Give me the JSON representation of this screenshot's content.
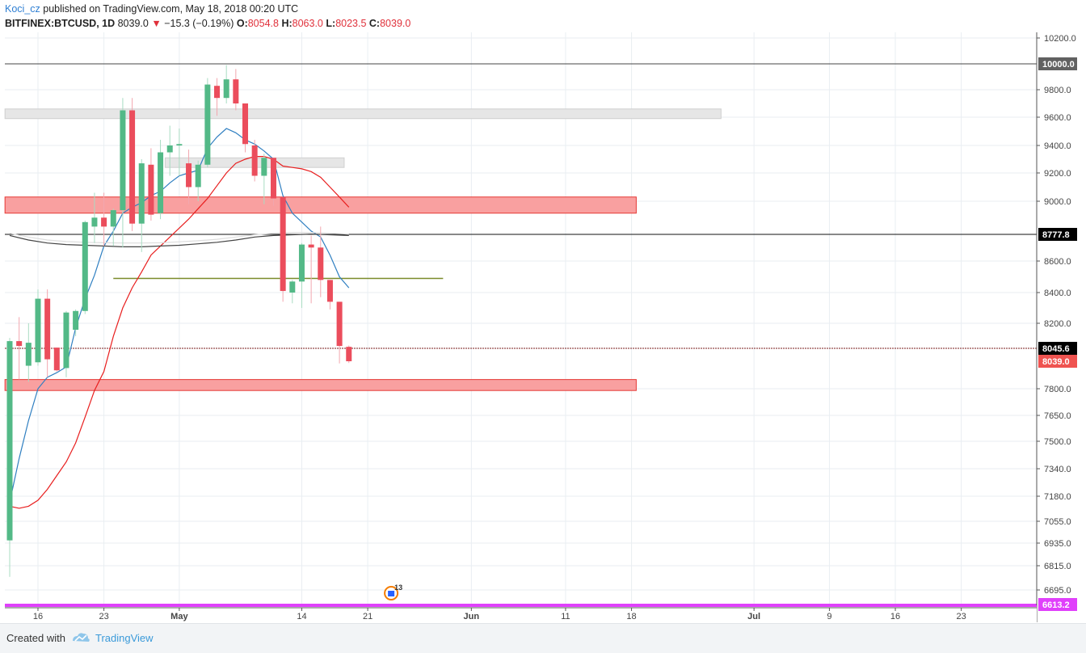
{
  "header": {
    "author": "Koci_cz",
    "published_text": " published on TradingView.com, May 18, 2018 00:20 UTC",
    "symbol": "BITFINEX:BTCUSD, 1D",
    "last": "8039.0",
    "change_arrow": "▼",
    "change": "−15.3 (−0.19%)",
    "o_label": "O:",
    "o_value": "8054.8",
    "h_label": "H:",
    "h_value": "8063.0",
    "l_label": "L:",
    "l_value": "8023.5",
    "c_label": "C:",
    "c_value": "8039.0"
  },
  "footer": {
    "created_with": "Created with",
    "brand": "TradingView"
  },
  "chart_data": {
    "type": "candlestick",
    "y_ticks": [
      {
        "label": "10200.0",
        "value": 10200
      },
      {
        "label": "9800.0",
        "value": 9800
      },
      {
        "label": "9600.0",
        "value": 9600
      },
      {
        "label": "9400.0",
        "value": 9400
      },
      {
        "label": "9200.0",
        "value": 9200
      },
      {
        "label": "9000.0",
        "value": 9000
      },
      {
        "label": "8600.0",
        "value": 8600
      },
      {
        "label": "8400.0",
        "value": 8400
      },
      {
        "label": "8200.0",
        "value": 8200
      },
      {
        "label": "7800.0",
        "value": 7800
      },
      {
        "label": "7650.0",
        "value": 7650
      },
      {
        "label": "7500.0",
        "value": 7500
      },
      {
        "label": "7340.0",
        "value": 7340
      },
      {
        "label": "7180.0",
        "value": 7180
      },
      {
        "label": "7055.0",
        "value": 7055
      },
      {
        "label": "6935.0",
        "value": 6935
      },
      {
        "label": "6815.0",
        "value": 6815
      },
      {
        "label": "6695.0",
        "value": 6695
      }
    ],
    "x_ticks": [
      {
        "label": "16",
        "day": 3
      },
      {
        "label": "23",
        "day": 10
      },
      {
        "label": "May",
        "day": 18
      },
      {
        "label": "14",
        "day": 31
      },
      {
        "label": "21",
        "day": 38
      },
      {
        "label": "Jun",
        "day": 49
      },
      {
        "label": "11",
        "day": 59
      },
      {
        "label": "18",
        "day": 66
      },
      {
        "label": "Jul",
        "day": 79
      },
      {
        "label": "9",
        "day": 87
      },
      {
        "label": "16",
        "day": 94
      },
      {
        "label": "23",
        "day": 101
      }
    ],
    "price_tags": [
      {
        "label": "10000.0",
        "value": 10000,
        "bg": "#616161",
        "fg": "#ffffff"
      },
      {
        "label": "8777.8",
        "value": 8777.8,
        "bg": "#000000",
        "fg": "#ffffff"
      },
      {
        "label": "8045.6",
        "value": 8045.6,
        "bg": "#000000",
        "fg": "#ffffff"
      },
      {
        "label": "8039.0",
        "value": 8039,
        "bg": "#ef5350",
        "fg": "#ffffff"
      },
      {
        "label": "6613.2",
        "value": 6613.2,
        "bg": "#e040fb",
        "fg": "#ffffff"
      }
    ],
    "horizontal_lines": [
      {
        "value": 10000,
        "color": "#444444"
      },
      {
        "value": 8777.8,
        "color": "#111111"
      },
      {
        "value": 8045.6,
        "color": "#7a1b1b",
        "dashed": true
      },
      {
        "value": 6613.2,
        "color": "#e040fb"
      }
    ],
    "zones": [
      {
        "day_from": -0.5,
        "day_to": 75.5,
        "top": 9660,
        "bottom": 9590,
        "fill": "#e6e6e6",
        "stroke": "#cfcfcf"
      },
      {
        "day_from": 16.5,
        "day_to": 35.5,
        "top": 9310,
        "bottom": 9240,
        "fill": "#e6e6e6",
        "stroke": "#cfcfcf"
      },
      {
        "day_from": -0.5,
        "day_to": 66.5,
        "top": 9030,
        "bottom": 8920,
        "fill": "#f9a0a0",
        "stroke": "#e53935"
      },
      {
        "day_from": -0.5,
        "day_to": 66.5,
        "top": 7880,
        "bottom": 7790,
        "fill": "#f9a0a0",
        "stroke": "#e53935"
      }
    ],
    "trend_line": {
      "day_from": 11,
      "day_to": 46,
      "value": 8490,
      "color": "#7a8b2a"
    },
    "candles": [
      {
        "day": 0,
        "o": 6950,
        "h": 8110,
        "l": 6760,
        "c": 8090
      },
      {
        "day": 1,
        "o": 8090,
        "h": 8240,
        "l": 7880,
        "c": 8060
      },
      {
        "day": 2,
        "o": 8000,
        "h": 8200,
        "l": 7860,
        "c": 8080
      },
      {
        "day": 3,
        "o": 8030,
        "h": 8420,
        "l": 8000,
        "c": 8360
      },
      {
        "day": 4,
        "o": 8360,
        "h": 8420,
        "l": 7900,
        "c": 8040
      },
      {
        "day": 5,
        "o": 8050,
        "h": 8050,
        "l": 7950,
        "c": 7960
      },
      {
        "day": 6,
        "o": 7980,
        "h": 8280,
        "l": 7900,
        "c": 8270
      },
      {
        "day": 7,
        "o": 8160,
        "h": 8290,
        "l": 8120,
        "c": 8280
      },
      {
        "day": 8,
        "o": 8280,
        "h": 8870,
        "l": 8260,
        "c": 8860
      },
      {
        "day": 9,
        "o": 8830,
        "h": 9060,
        "l": 8720,
        "c": 8890
      },
      {
        "day": 10,
        "o": 8890,
        "h": 9060,
        "l": 8700,
        "c": 8830
      },
      {
        "day": 11,
        "o": 8830,
        "h": 8950,
        "l": 8700,
        "c": 8940
      },
      {
        "day": 12,
        "o": 8940,
        "h": 9740,
        "l": 8690,
        "c": 9650
      },
      {
        "day": 13,
        "o": 9650,
        "h": 9740,
        "l": 8800,
        "c": 8850
      },
      {
        "day": 14,
        "o": 8850,
        "h": 9300,
        "l": 8660,
        "c": 9270
      },
      {
        "day": 15,
        "o": 9260,
        "h": 9380,
        "l": 8870,
        "c": 8910
      },
      {
        "day": 16,
        "o": 8920,
        "h": 9440,
        "l": 8880,
        "c": 9350
      },
      {
        "day": 17,
        "o": 9350,
        "h": 9540,
        "l": 9180,
        "c": 9400
      },
      {
        "day": 18,
        "o": 9400,
        "h": 9520,
        "l": 9180,
        "c": 9410
      },
      {
        "day": 19,
        "o": 9270,
        "h": 9370,
        "l": 8980,
        "c": 9100
      },
      {
        "day": 20,
        "o": 9100,
        "h": 9290,
        "l": 9000,
        "c": 9260
      },
      {
        "day": 21,
        "o": 9260,
        "h": 9890,
        "l": 9240,
        "c": 9840
      },
      {
        "day": 22,
        "o": 9830,
        "h": 9890,
        "l": 9610,
        "c": 9740
      },
      {
        "day": 23,
        "o": 9740,
        "h": 9990,
        "l": 9700,
        "c": 9880
      },
      {
        "day": 24,
        "o": 9880,
        "h": 9960,
        "l": 9650,
        "c": 9700
      },
      {
        "day": 25,
        "o": 9700,
        "h": 9700,
        "l": 9350,
        "c": 9410
      },
      {
        "day": 26,
        "o": 9400,
        "h": 9440,
        "l": 9140,
        "c": 9180
      },
      {
        "day": 27,
        "o": 9180,
        "h": 9340,
        "l": 8980,
        "c": 9310
      },
      {
        "day": 28,
        "o": 9310,
        "h": 9310,
        "l": 8970,
        "c": 9020
      },
      {
        "day": 29,
        "o": 9030,
        "h": 9030,
        "l": 8340,
        "c": 8410
      },
      {
        "day": 30,
        "o": 8400,
        "h": 8480,
        "l": 8330,
        "c": 8470
      },
      {
        "day": 31,
        "o": 8470,
        "h": 8720,
        "l": 8300,
        "c": 8710
      },
      {
        "day": 32,
        "o": 8710,
        "h": 8770,
        "l": 8330,
        "c": 8690
      },
      {
        "day": 33,
        "o": 8690,
        "h": 8830,
        "l": 8370,
        "c": 8480
      },
      {
        "day": 34,
        "o": 8480,
        "h": 8480,
        "l": 8290,
        "c": 8340
      },
      {
        "day": 35,
        "o": 8340,
        "h": 8340,
        "l": 8020,
        "c": 8060
      },
      {
        "day": 36,
        "o": 8054.8,
        "h": 8063,
        "l": 8023.5,
        "c": 8039
      }
    ],
    "ma_lines": [
      {
        "color": "#2f7fc1",
        "points": [
          [
            0,
            7150
          ],
          [
            1,
            7400
          ],
          [
            2,
            7620
          ],
          [
            3,
            7800
          ],
          [
            4,
            7900
          ],
          [
            5,
            7940
          ],
          [
            6,
            7990
          ],
          [
            7,
            8170
          ],
          [
            8,
            8360
          ],
          [
            9,
            8510
          ],
          [
            10,
            8700
          ],
          [
            11,
            8800
          ],
          [
            12,
            8920
          ],
          [
            13,
            8960
          ],
          [
            14,
            8990
          ],
          [
            15,
            9040
          ],
          [
            16,
            9070
          ],
          [
            17,
            9130
          ],
          [
            18,
            9180
          ],
          [
            19,
            9200
          ],
          [
            20,
            9220
          ],
          [
            21,
            9380
          ],
          [
            22,
            9460
          ],
          [
            23,
            9520
          ],
          [
            24,
            9490
          ],
          [
            25,
            9440
          ],
          [
            26,
            9410
          ],
          [
            27,
            9360
          ],
          [
            28,
            9300
          ],
          [
            29,
            9040
          ],
          [
            30,
            8920
          ],
          [
            31,
            8860
          ],
          [
            32,
            8800
          ],
          [
            33,
            8760
          ],
          [
            34,
            8640
          ],
          [
            35,
            8500
          ],
          [
            36,
            8430
          ]
        ]
      },
      {
        "color": "#e81e1e",
        "points": [
          [
            0,
            7130
          ],
          [
            1,
            7120
          ],
          [
            2,
            7130
          ],
          [
            3,
            7160
          ],
          [
            4,
            7220
          ],
          [
            5,
            7300
          ],
          [
            6,
            7380
          ],
          [
            7,
            7490
          ],
          [
            8,
            7640
          ],
          [
            9,
            7790
          ],
          [
            10,
            7950
          ],
          [
            11,
            8120
          ],
          [
            12,
            8300
          ],
          [
            13,
            8430
          ],
          [
            14,
            8530
          ],
          [
            15,
            8640
          ],
          [
            16,
            8700
          ],
          [
            17,
            8760
          ],
          [
            18,
            8820
          ],
          [
            19,
            8880
          ],
          [
            20,
            8950
          ],
          [
            21,
            9020
          ],
          [
            22,
            9110
          ],
          [
            23,
            9200
          ],
          [
            24,
            9270
          ],
          [
            25,
            9300
          ],
          [
            26,
            9320
          ],
          [
            27,
            9320
          ],
          [
            28,
            9300
          ],
          [
            29,
            9250
          ],
          [
            30,
            9240
          ],
          [
            31,
            9230
          ],
          [
            32,
            9210
          ],
          [
            33,
            9170
          ],
          [
            34,
            9100
          ],
          [
            35,
            9030
          ],
          [
            36,
            8960
          ]
        ]
      },
      {
        "color": "#444444",
        "points": [
          [
            0,
            8770
          ],
          [
            2,
            8740
          ],
          [
            4,
            8720
          ],
          [
            6,
            8710
          ],
          [
            8,
            8705
          ],
          [
            10,
            8700
          ],
          [
            12,
            8695
          ],
          [
            14,
            8695
          ],
          [
            16,
            8700
          ],
          [
            18,
            8705
          ],
          [
            20,
            8715
          ],
          [
            22,
            8725
          ],
          [
            24,
            8740
          ],
          [
            26,
            8760
          ],
          [
            28,
            8770
          ],
          [
            30,
            8775
          ],
          [
            32,
            8780
          ],
          [
            34,
            8775
          ],
          [
            36,
            8770
          ]
        ]
      },
      {
        "color": "#dddddd",
        "points": [
          [
            0,
            8785
          ],
          [
            2,
            8760
          ],
          [
            4,
            8740
          ],
          [
            6,
            8730
          ],
          [
            8,
            8725
          ],
          [
            10,
            8722
          ],
          [
            12,
            8720
          ],
          [
            14,
            8720
          ],
          [
            16,
            8722
          ],
          [
            18,
            8728
          ],
          [
            20,
            8735
          ],
          [
            22,
            8745
          ],
          [
            24,
            8760
          ],
          [
            26,
            8775
          ],
          [
            28,
            8785
          ],
          [
            30,
            8790
          ],
          [
            32,
            8790
          ],
          [
            34,
            8785
          ],
          [
            36,
            8780
          ]
        ]
      }
    ],
    "event_badge": {
      "day": 35,
      "count": "13"
    },
    "colors": {
      "up": "#53b987",
      "down": "#eb4d5c",
      "grid": "#e9eef2",
      "axis": "#555555"
    }
  }
}
